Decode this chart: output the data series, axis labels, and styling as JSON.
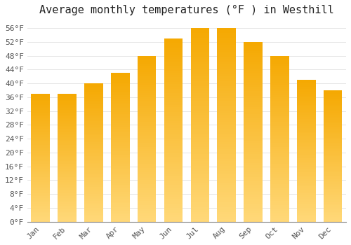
{
  "title": "Average monthly temperatures (°F ) in Westhill",
  "months": [
    "Jan",
    "Feb",
    "Mar",
    "Apr",
    "May",
    "Jun",
    "Jul",
    "Aug",
    "Sep",
    "Oct",
    "Nov",
    "Dec"
  ],
  "values": [
    37,
    37,
    40,
    43,
    48,
    53,
    56,
    56,
    52,
    48,
    41,
    38
  ],
  "bar_color_top": "#F5A800",
  "bar_color_bottom": "#FFD878",
  "bar_color_left": "#E08000",
  "background_color": "#FFFFFF",
  "ytick_step": 4,
  "ymin": 0,
  "ymax": 58,
  "title_fontsize": 11,
  "tick_fontsize": 8,
  "grid_color": "#E0E0E0",
  "font_family": "monospace"
}
